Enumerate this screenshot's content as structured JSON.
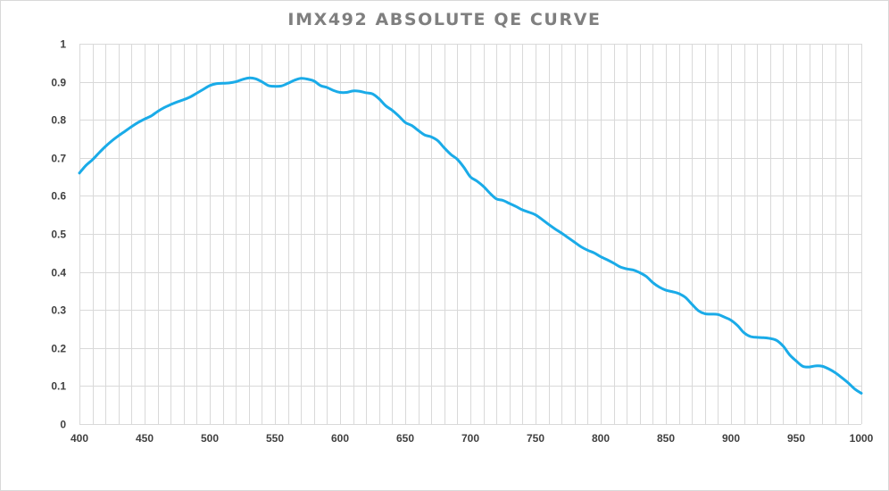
{
  "chart_data": {
    "type": "line",
    "title": "IMX492 ABSOLUTE QE CURVE",
    "xlabel": "",
    "ylabel": "",
    "xlim": [
      400,
      1000
    ],
    "ylim": [
      0,
      1
    ],
    "x_ticks": [
      "400",
      "450",
      "500",
      "550",
      "600",
      "650",
      "700",
      "750",
      "800",
      "850",
      "900",
      "950",
      "1000"
    ],
    "y_ticks": [
      "0",
      "0.1",
      "0.2",
      "0.3",
      "0.4",
      "0.5",
      "0.6",
      "0.7",
      "0.8",
      "0.9",
      "1"
    ],
    "grid": true,
    "legend": "none",
    "series": [
      {
        "color": "#1aabe8",
        "x": [
          400,
          405,
          410,
          415,
          420,
          425,
          430,
          435,
          440,
          445,
          450,
          455,
          460,
          465,
          470,
          475,
          480,
          485,
          490,
          495,
          500,
          505,
          510,
          515,
          520,
          525,
          530,
          535,
          540,
          545,
          550,
          555,
          560,
          565,
          570,
          575,
          580,
          585,
          590,
          595,
          600,
          605,
          610,
          615,
          620,
          625,
          630,
          635,
          640,
          645,
          650,
          655,
          660,
          665,
          670,
          675,
          680,
          685,
          690,
          695,
          700,
          705,
          710,
          715,
          720,
          725,
          730,
          735,
          740,
          745,
          750,
          755,
          760,
          765,
          770,
          775,
          780,
          785,
          790,
          795,
          800,
          805,
          810,
          815,
          820,
          825,
          830,
          835,
          840,
          845,
          850,
          855,
          860,
          865,
          870,
          875,
          880,
          885,
          890,
          895,
          900,
          905,
          910,
          915,
          920,
          925,
          930,
          935,
          940,
          945,
          950,
          955,
          960,
          965,
          970,
          975,
          980,
          985,
          990,
          995,
          1000
        ],
        "y": [
          0.66,
          0.68,
          0.695,
          0.713,
          0.73,
          0.745,
          0.758,
          0.77,
          0.782,
          0.793,
          0.802,
          0.81,
          0.822,
          0.832,
          0.84,
          0.847,
          0.853,
          0.86,
          0.87,
          0.88,
          0.89,
          0.895,
          0.896,
          0.897,
          0.9,
          0.906,
          0.91,
          0.908,
          0.9,
          0.89,
          0.888,
          0.889,
          0.896,
          0.904,
          0.909,
          0.907,
          0.902,
          0.89,
          0.885,
          0.877,
          0.872,
          0.872,
          0.876,
          0.875,
          0.871,
          0.868,
          0.855,
          0.837,
          0.825,
          0.81,
          0.793,
          0.785,
          0.772,
          0.76,
          0.755,
          0.745,
          0.726,
          0.709,
          0.696,
          0.675,
          0.65,
          0.639,
          0.625,
          0.607,
          0.592,
          0.588,
          0.58,
          0.572,
          0.563,
          0.557,
          0.55,
          0.538,
          0.525,
          0.513,
          0.502,
          0.49,
          0.478,
          0.466,
          0.457,
          0.45,
          0.44,
          0.432,
          0.423,
          0.413,
          0.408,
          0.405,
          0.398,
          0.388,
          0.372,
          0.36,
          0.352,
          0.348,
          0.343,
          0.333,
          0.315,
          0.298,
          0.29,
          0.289,
          0.288,
          0.281,
          0.273,
          0.259,
          0.24,
          0.23,
          0.228,
          0.227,
          0.225,
          0.22,
          0.205,
          0.182,
          0.166,
          0.152,
          0.15,
          0.153,
          0.152,
          0.145,
          0.135,
          0.122,
          0.108,
          0.092,
          0.081
        ]
      }
    ]
  }
}
